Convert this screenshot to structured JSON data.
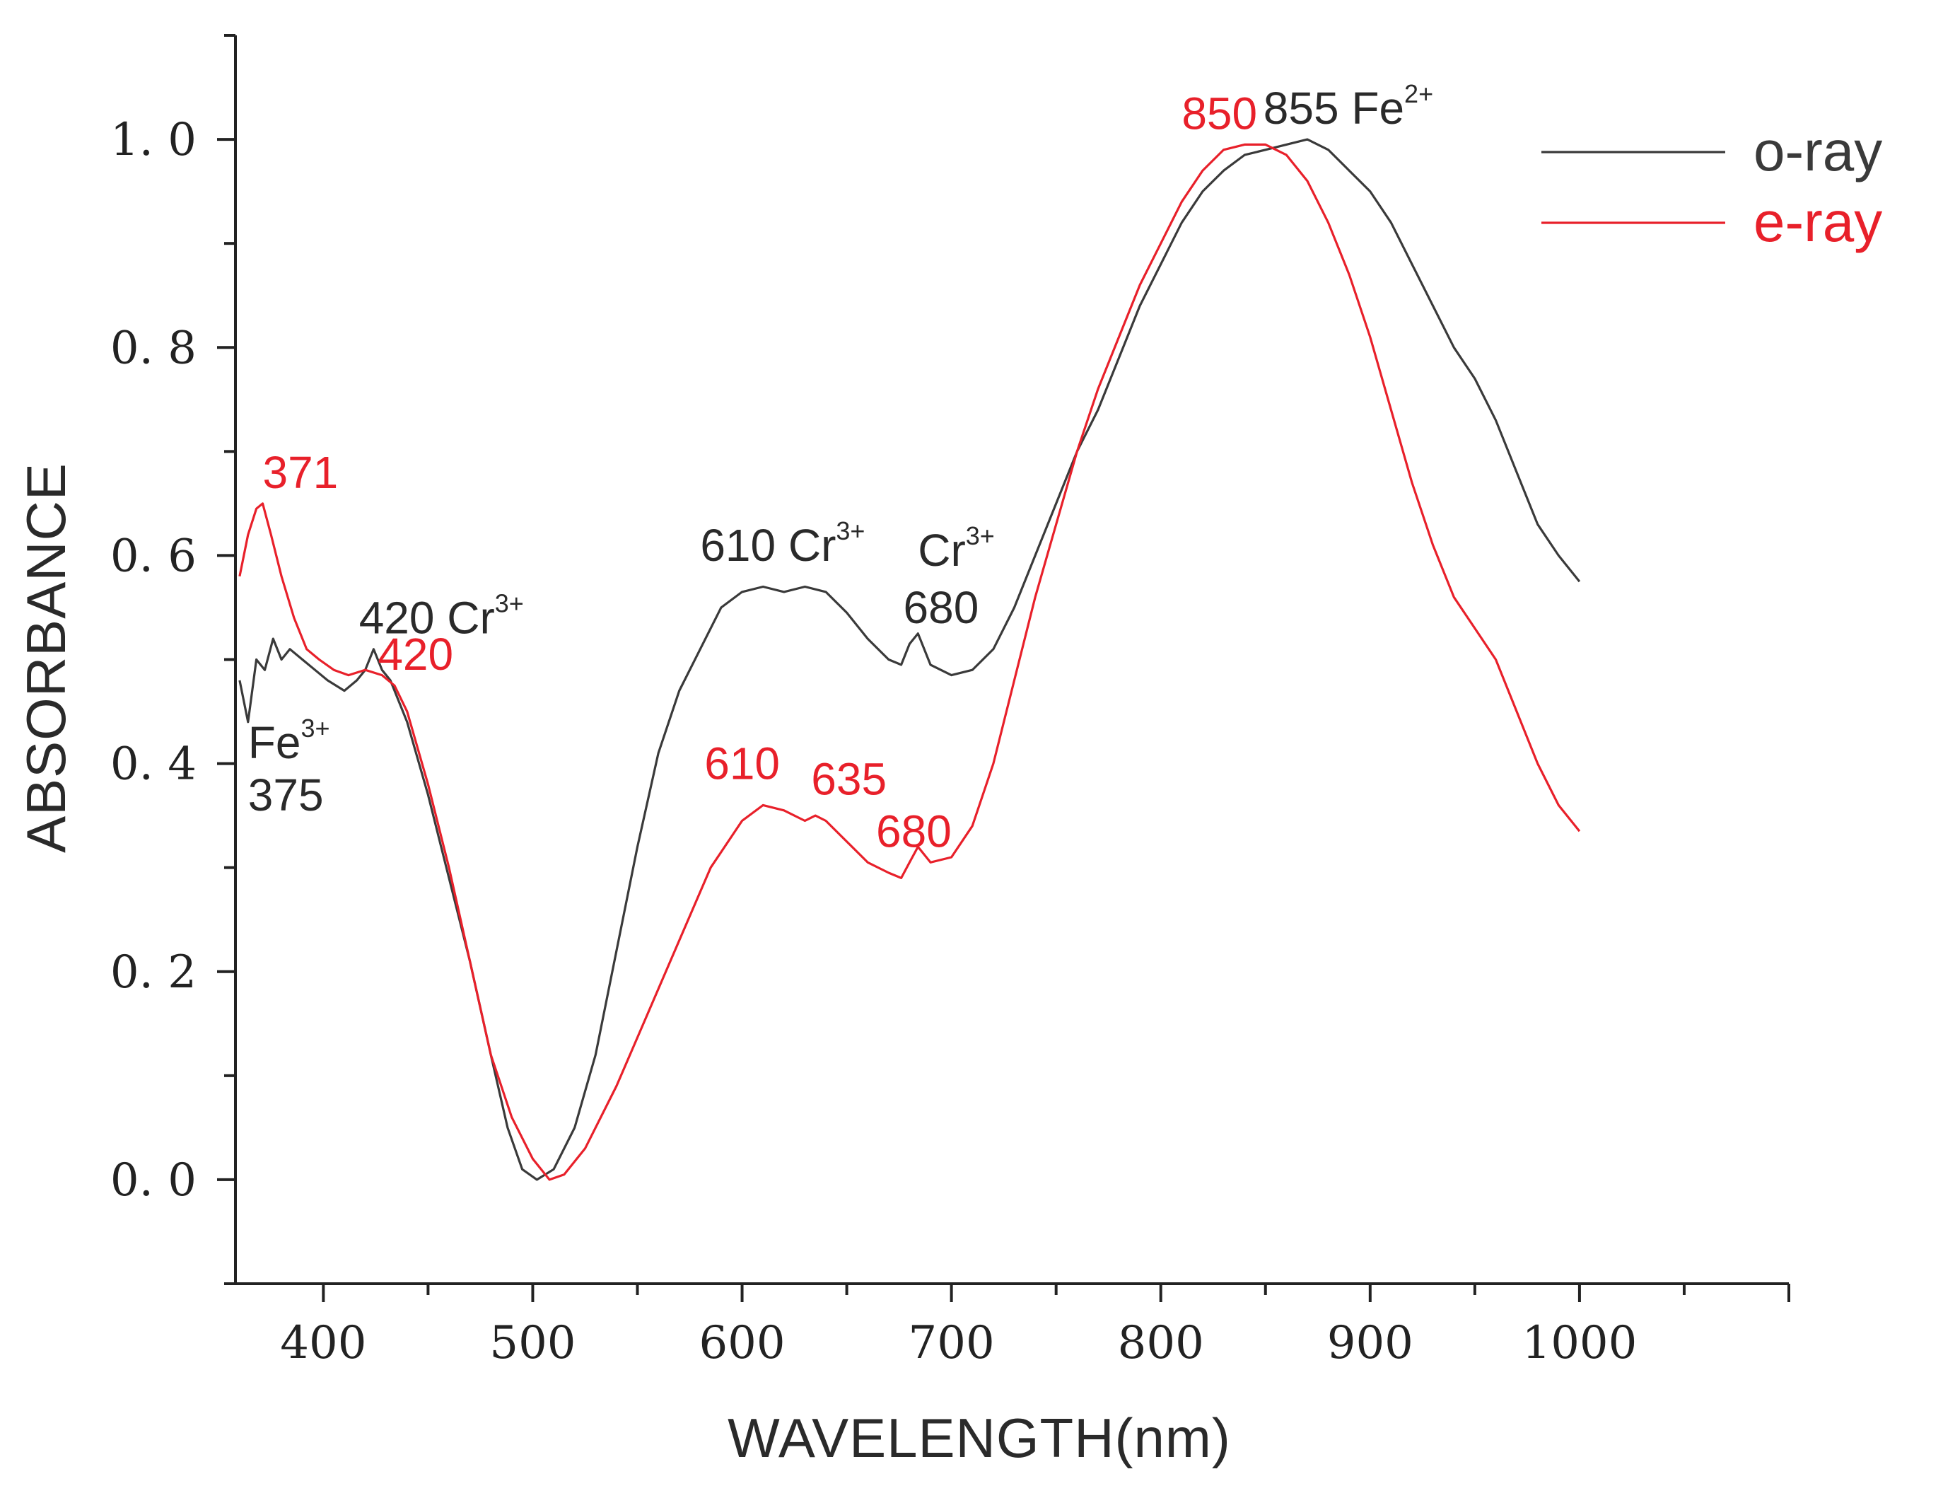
{
  "chart_data": {
    "type": "line",
    "title": "",
    "xlabel": "WAVELENGTH(nm)",
    "ylabel": "ABSORBANCE",
    "xlim": [
      358,
      1100
    ],
    "ylim": [
      -0.1,
      1.1
    ],
    "xticks": [
      400,
      500,
      600,
      700,
      800,
      900,
      1000
    ],
    "xtick_labels": [
      "400",
      "500",
      "600",
      "700",
      "800",
      "900",
      "1000"
    ],
    "yticks": [
      0.0,
      0.2,
      0.4,
      0.6,
      0.8,
      1.0
    ],
    "ytick_labels": [
      "0. 0",
      "0. 2",
      "0. 4",
      "0. 6",
      "0. 8",
      "1. 0"
    ],
    "grid": false,
    "legend_position": "top-right",
    "series": [
      {
        "name": "o-ray",
        "color": "#3a3a3a",
        "points": [
          [
            360,
            0.48
          ],
          [
            364,
            0.44
          ],
          [
            368,
            0.5
          ],
          [
            372,
            0.49
          ],
          [
            376,
            0.52
          ],
          [
            380,
            0.5
          ],
          [
            384,
            0.51
          ],
          [
            390,
            0.5
          ],
          [
            396,
            0.49
          ],
          [
            402,
            0.48
          ],
          [
            410,
            0.47
          ],
          [
            416,
            0.48
          ],
          [
            420,
            0.49
          ],
          [
            424,
            0.51
          ],
          [
            428,
            0.49
          ],
          [
            432,
            0.48
          ],
          [
            440,
            0.44
          ],
          [
            450,
            0.37
          ],
          [
            460,
            0.29
          ],
          [
            470,
            0.21
          ],
          [
            480,
            0.12
          ],
          [
            488,
            0.05
          ],
          [
            495,
            0.01
          ],
          [
            502,
            0.0
          ],
          [
            510,
            0.01
          ],
          [
            520,
            0.05
          ],
          [
            530,
            0.12
          ],
          [
            540,
            0.22
          ],
          [
            550,
            0.32
          ],
          [
            560,
            0.41
          ],
          [
            570,
            0.47
          ],
          [
            580,
            0.51
          ],
          [
            590,
            0.55
          ],
          [
            600,
            0.565
          ],
          [
            610,
            0.57
          ],
          [
            620,
            0.565
          ],
          [
            630,
            0.57
          ],
          [
            640,
            0.565
          ],
          [
            650,
            0.545
          ],
          [
            660,
            0.52
          ],
          [
            670,
            0.5
          ],
          [
            676,
            0.495
          ],
          [
            680,
            0.515
          ],
          [
            684,
            0.525
          ],
          [
            690,
            0.495
          ],
          [
            700,
            0.485
          ],
          [
            710,
            0.49
          ],
          [
            720,
            0.51
          ],
          [
            730,
            0.55
          ],
          [
            740,
            0.6
          ],
          [
            750,
            0.65
          ],
          [
            760,
            0.7
          ],
          [
            770,
            0.74
          ],
          [
            780,
            0.79
          ],
          [
            790,
            0.84
          ],
          [
            800,
            0.88
          ],
          [
            810,
            0.92
          ],
          [
            820,
            0.95
          ],
          [
            830,
            0.97
          ],
          [
            840,
            0.985
          ],
          [
            850,
            0.99
          ],
          [
            860,
            0.995
          ],
          [
            870,
            1.0
          ],
          [
            880,
            0.99
          ],
          [
            890,
            0.97
          ],
          [
            900,
            0.95
          ],
          [
            910,
            0.92
          ],
          [
            920,
            0.88
          ],
          [
            930,
            0.84
          ],
          [
            940,
            0.8
          ],
          [
            950,
            0.77
          ],
          [
            960,
            0.73
          ],
          [
            970,
            0.68
          ],
          [
            980,
            0.63
          ],
          [
            990,
            0.6
          ],
          [
            1000,
            0.575
          ]
        ]
      },
      {
        "name": "e-ray",
        "color": "#e8202a",
        "points": [
          [
            360,
            0.58
          ],
          [
            364,
            0.62
          ],
          [
            368,
            0.645
          ],
          [
            371,
            0.65
          ],
          [
            375,
            0.62
          ],
          [
            380,
            0.58
          ],
          [
            386,
            0.54
          ],
          [
            392,
            0.51
          ],
          [
            398,
            0.5
          ],
          [
            405,
            0.49
          ],
          [
            412,
            0.485
          ],
          [
            420,
            0.49
          ],
          [
            428,
            0.485
          ],
          [
            434,
            0.475
          ],
          [
            440,
            0.45
          ],
          [
            450,
            0.38
          ],
          [
            460,
            0.3
          ],
          [
            470,
            0.21
          ],
          [
            480,
            0.12
          ],
          [
            490,
            0.06
          ],
          [
            500,
            0.02
          ],
          [
            508,
            0.0
          ],
          [
            515,
            0.005
          ],
          [
            525,
            0.03
          ],
          [
            540,
            0.09
          ],
          [
            555,
            0.16
          ],
          [
            570,
            0.23
          ],
          [
            585,
            0.3
          ],
          [
            600,
            0.345
          ],
          [
            610,
            0.36
          ],
          [
            620,
            0.355
          ],
          [
            630,
            0.345
          ],
          [
            635,
            0.35
          ],
          [
            640,
            0.345
          ],
          [
            650,
            0.325
          ],
          [
            660,
            0.305
          ],
          [
            670,
            0.295
          ],
          [
            676,
            0.29
          ],
          [
            680,
            0.305
          ],
          [
            684,
            0.32
          ],
          [
            690,
            0.305
          ],
          [
            700,
            0.31
          ],
          [
            710,
            0.34
          ],
          [
            720,
            0.4
          ],
          [
            730,
            0.48
          ],
          [
            740,
            0.56
          ],
          [
            750,
            0.63
          ],
          [
            760,
            0.7
          ],
          [
            770,
            0.76
          ],
          [
            780,
            0.81
          ],
          [
            790,
            0.86
          ],
          [
            800,
            0.9
          ],
          [
            810,
            0.94
          ],
          [
            820,
            0.97
          ],
          [
            830,
            0.99
          ],
          [
            840,
            0.995
          ],
          [
            850,
            0.995
          ],
          [
            860,
            0.985
          ],
          [
            870,
            0.96
          ],
          [
            880,
            0.92
          ],
          [
            890,
            0.87
          ],
          [
            900,
            0.81
          ],
          [
            910,
            0.74
          ],
          [
            920,
            0.67
          ],
          [
            930,
            0.61
          ],
          [
            940,
            0.56
          ],
          [
            950,
            0.53
          ],
          [
            960,
            0.5
          ],
          [
            970,
            0.45
          ],
          [
            980,
            0.4
          ],
          [
            990,
            0.36
          ],
          [
            1000,
            0.335
          ]
        ]
      }
    ],
    "annotations": [
      {
        "text": "371",
        "sup": "",
        "color": "#e8202a",
        "x": 371,
        "y": 0.665
      },
      {
        "text": "420 Cr",
        "sup": "3+",
        "color": "#2a2a2a",
        "x": 417,
        "y": 0.525
      },
      {
        "text": "420",
        "sup": "",
        "color": "#e8202a",
        "x": 426,
        "y": 0.49
      },
      {
        "text": "Fe",
        "sup": "3+",
        "color": "#2a2a2a",
        "x": 364,
        "y": 0.405
      },
      {
        "text": "375",
        "sup": "",
        "color": "#2a2a2a",
        "x": 364,
        "y": 0.355
      },
      {
        "text": "610 Cr",
        "sup": "3+",
        "color": "#2a2a2a",
        "x": 580,
        "y": 0.595
      },
      {
        "text": "Cr",
        "sup": "3+",
        "color": "#2a2a2a",
        "x": 684,
        "y": 0.59
      },
      {
        "text": "680",
        "sup": "",
        "color": "#2a2a2a",
        "x": 677,
        "y": 0.535
      },
      {
        "text": "610",
        "sup": "",
        "color": "#e8202a",
        "x": 582,
        "y": 0.385
      },
      {
        "text": "635",
        "sup": "",
        "color": "#e8202a",
        "x": 633,
        "y": 0.37
      },
      {
        "text": "680",
        "sup": "",
        "color": "#e8202a",
        "x": 664,
        "y": 0.32
      },
      {
        "text": "850",
        "sup": "",
        "color": "#e8202a",
        "x": 810,
        "y": 1.01
      },
      {
        "text": "855 Fe",
        "sup": "2+",
        "color": "#2a2a2a",
        "x": 849,
        "y": 1.015
      }
    ]
  }
}
